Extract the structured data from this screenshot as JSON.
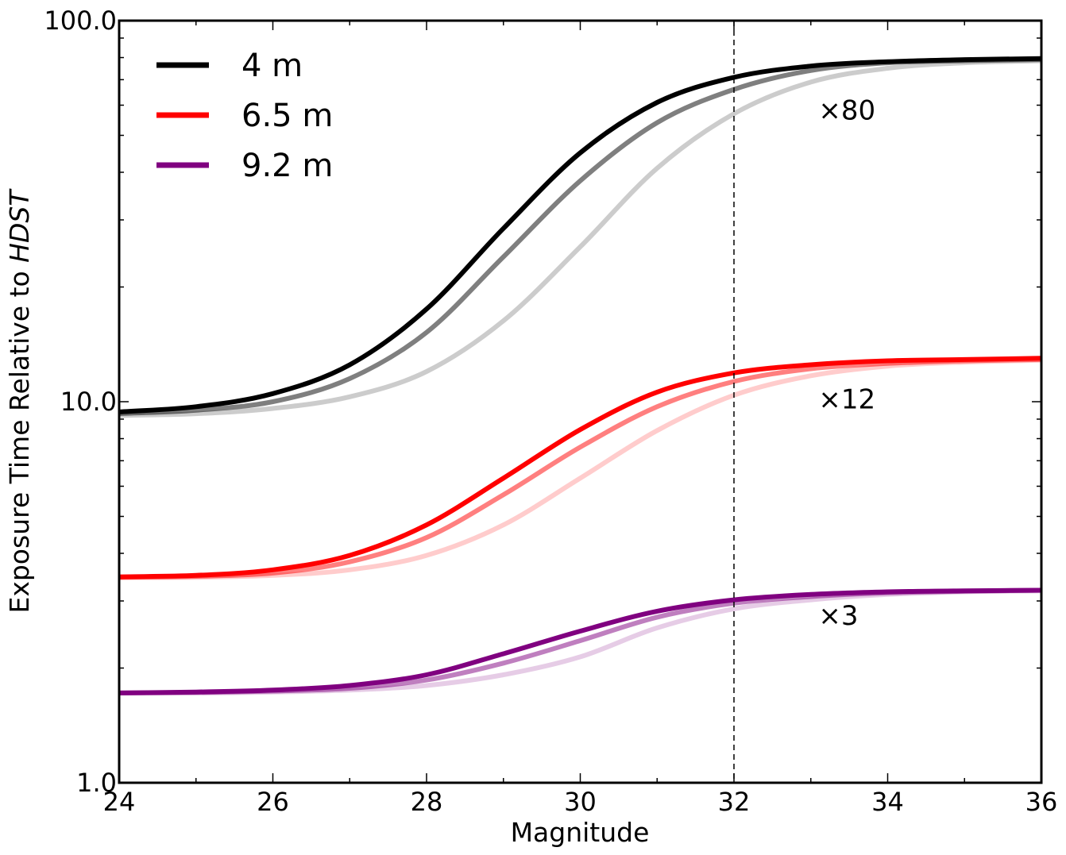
{
  "chart_data": {
    "type": "line",
    "xlabel": "Magnitude",
    "ylabel_prefix": "Exposure Time Relative to ",
    "ylabel_italic": "HDST",
    "xlim": [
      24,
      36
    ],
    "ylim": [
      1.0,
      100.0
    ],
    "yscale": "log",
    "grid": false,
    "legend_position": "top-left",
    "x_ticks": [
      24,
      26,
      28,
      30,
      32,
      34,
      36
    ],
    "x_tick_labels": [
      "24",
      "26",
      "28",
      "30",
      "32",
      "34",
      "36"
    ],
    "y_ticks": [
      1.0,
      10.0,
      100.0
    ],
    "y_tick_labels": [
      "1.0",
      "10.0",
      "100.0"
    ],
    "vline": {
      "x": 32,
      "style": "dashed",
      "color": "#000000"
    },
    "legend": [
      {
        "label": "4 m",
        "color": "#000000"
      },
      {
        "label": "6.5 m",
        "color": "#ff0000"
      },
      {
        "label": "9.2 m",
        "color": "#800080"
      }
    ],
    "annotations": [
      {
        "text": "×80",
        "x": 33.1,
        "y": 55
      },
      {
        "text": "×12",
        "x": 33.1,
        "y": 9.6
      },
      {
        "text": "×3",
        "x": 33.1,
        "y": 2.6
      }
    ],
    "x": [
      24,
      25,
      26,
      27,
      28,
      29,
      30,
      31,
      32,
      33,
      34,
      35,
      36
    ],
    "series": [
      {
        "group": "4 m",
        "color": "#000000",
        "opacity": 1.0,
        "values": [
          9.4,
          9.7,
          10.5,
          12.5,
          17.5,
          28.5,
          45,
          61,
          71,
          76,
          78,
          79,
          79.5
        ]
      },
      {
        "group": "4 m",
        "color": "#000000",
        "opacity": 0.5,
        "values": [
          9.3,
          9.5,
          10.0,
          11.5,
          15.2,
          24,
          38,
          54,
          66,
          74,
          77.5,
          78.5,
          79
        ]
      },
      {
        "group": "4 m",
        "color": "#000000",
        "opacity": 0.2,
        "values": [
          9.2,
          9.3,
          9.6,
          10.3,
          12.0,
          16.3,
          25.5,
          41,
          57,
          69,
          75,
          77.5,
          78.5
        ]
      },
      {
        "group": "6.5 m",
        "color": "#ff0000",
        "opacity": 1.0,
        "values": [
          3.47,
          3.5,
          3.62,
          3.95,
          4.75,
          6.3,
          8.45,
          10.6,
          11.9,
          12.5,
          12.8,
          12.9,
          13.0
        ]
      },
      {
        "group": "6.5 m",
        "color": "#ff0000",
        "opacity": 0.5,
        "values": [
          3.46,
          3.48,
          3.55,
          3.8,
          4.4,
          5.7,
          7.6,
          9.7,
          11.3,
          12.2,
          12.6,
          12.8,
          12.9
        ]
      },
      {
        "group": "6.5 m",
        "color": "#ff0000",
        "opacity": 0.2,
        "values": [
          3.45,
          3.46,
          3.5,
          3.62,
          3.95,
          4.75,
          6.3,
          8.4,
          10.4,
          11.7,
          12.4,
          12.7,
          12.85
        ]
      },
      {
        "group": "9.2 m",
        "color": "#800080",
        "opacity": 1.0,
        "values": [
          1.72,
          1.73,
          1.75,
          1.8,
          1.92,
          2.18,
          2.5,
          2.82,
          3.02,
          3.12,
          3.17,
          3.19,
          3.2
        ]
      },
      {
        "group": "9.2 m",
        "color": "#800080",
        "opacity": 0.5,
        "values": [
          1.72,
          1.725,
          1.74,
          1.77,
          1.86,
          2.06,
          2.36,
          2.72,
          2.96,
          3.08,
          3.15,
          3.18,
          3.2
        ]
      },
      {
        "group": "9.2 m",
        "color": "#800080",
        "opacity": 0.2,
        "values": [
          1.72,
          1.72,
          1.73,
          1.75,
          1.8,
          1.92,
          2.14,
          2.55,
          2.86,
          3.02,
          3.12,
          3.17,
          3.19
        ]
      }
    ]
  }
}
